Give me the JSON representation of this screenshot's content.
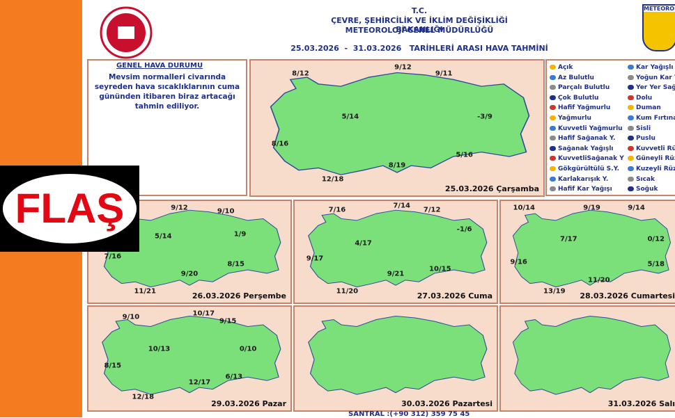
{
  "badge": "FLAŞ",
  "header": {
    "line1": "T.C.",
    "line2": "ÇEVRE, ŞEHİRCİLİK VE İKLİM DEĞİŞİKLİĞİ BAKANLIĞI",
    "line3": "METEOROLOJİ GENEL MÜDÜRLÜĞÜ",
    "subtitle": "25.03.2026  -  31.03.2026   TARİHLERİ ARASI HAVA TAHMİNİ",
    "logo_right": "METEOROLOJİ"
  },
  "summary": {
    "title": "GENEL HAVA DURUMU",
    "text": "Mevsim normalleri civarında seyreden hava sıcaklıklarının cuma gününden itibaren biraz artacağı tahmin ediliyor."
  },
  "legend": {
    "left": [
      "Açık",
      "Az Bulutlu",
      "Parçalı Bulutlu",
      "Çok Bulutlu",
      "Hafif Yağmurlu",
      "Yağmurlu",
      "Kuvvetli Yağmurlu",
      "Hafif Sağanak Y.",
      "Sağanak Yağışlı",
      "KuvvetliSağanak Y",
      "Gökgürültülü S.Y.",
      "Karlakarışık Y.",
      "Hafif Kar Yağışı"
    ],
    "right": [
      "Kar Yağışlı",
      "Yoğun Kar Yağışı",
      "Yer Yer Sağanak",
      "Dolu",
      "Duman",
      "Kum Fırtınası",
      "Sisli",
      "Puslu",
      "Kuvvetli Rüzgar",
      "Güneyli Rüzgar",
      "Kuzeyli Rüzgar",
      "Sıcak",
      "Soğuk"
    ]
  },
  "maps": [
    {
      "date": "25.03.2026 Çarşamba",
      "temps": [
        "8/12",
        "9/12",
        "9/11",
        "5/14",
        "-3/9",
        "8/16",
        "5/16",
        "8/19",
        "12/18"
      ]
    },
    {
      "date": "26.03.2026 Perşembe",
      "temps": [
        "9/12",
        "9/10",
        "5/14",
        "1/9",
        "7/16",
        "8/15",
        "9/20",
        "11/21"
      ]
    },
    {
      "date": "27.03.2026 Cuma",
      "temps": [
        "7/16",
        "7/14",
        "7/12",
        "-1/6",
        "4/17",
        "9/17",
        "10/15",
        "9/21",
        "11/20"
      ]
    },
    {
      "date": "28.03.2026 Cumartesi",
      "temps": [
        "10/14",
        "9/19",
        "9/14",
        "7/17",
        "0/12",
        "9/16",
        "5/18",
        "11/20",
        "13/19"
      ]
    },
    {
      "date": "29.03.2026 Pazar",
      "temps": [
        "9/10",
        "10/17",
        "9/15",
        "10/13",
        "0/10",
        "8/15",
        "12/17",
        "6/13",
        "12/18"
      ]
    },
    {
      "date": "30.03.2026 Pazartesi",
      "temps": []
    },
    {
      "date": "31.03.2026 Salı",
      "temps": []
    }
  ],
  "footer": "SANTRAL :(+90 312) 359 75 45"
}
